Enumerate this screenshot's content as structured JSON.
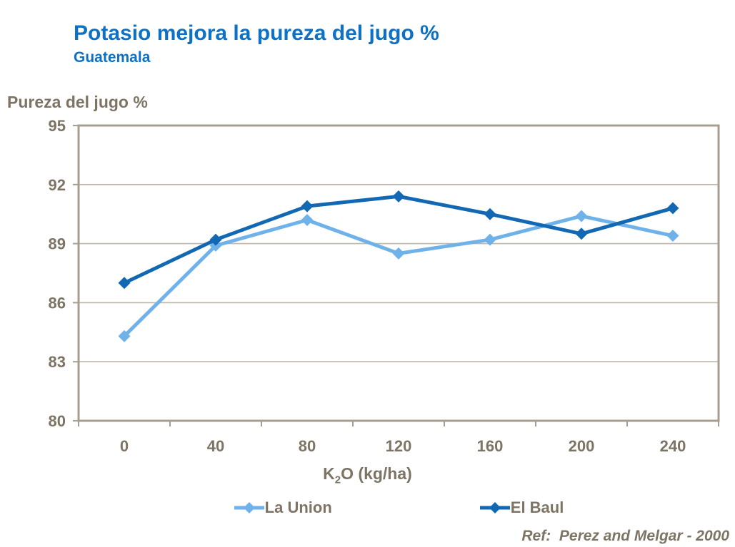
{
  "header": {
    "title": "Potasio mejora la pureza del jugo %",
    "subtitle": "Guatemala"
  },
  "footer": {
    "ref": "Ref:  Perez and Melgar - 2000"
  },
  "chart_data": {
    "type": "line",
    "title": "Potasio mejora la pureza del jugo %",
    "subtitle": "Guatemala",
    "categories": [
      "0",
      "40",
      "80",
      "120",
      "160",
      "200",
      "240"
    ],
    "series": [
      {
        "name": "La Union",
        "color": "#6fb2ea",
        "values": [
          84.3,
          88.9,
          90.2,
          88.5,
          89.2,
          90.4,
          89.4
        ]
      },
      {
        "name": "El Baul",
        "color": "#1268b2",
        "values": [
          87.0,
          89.2,
          90.9,
          91.4,
          90.5,
          89.5,
          90.8
        ]
      }
    ],
    "xlabel": "K2O (kg/ha)",
    "xlabel_parts": {
      "pre": "K",
      "sub": "2",
      "post": "O (kg/ha)"
    },
    "ylabel": "Pureza del jugo %",
    "ylim": [
      80,
      95
    ],
    "yticks": [
      80,
      83,
      86,
      89,
      92,
      95
    ],
    "grid": "horizontal",
    "legend_position": "bottom",
    "marker": "diamond"
  },
  "colors": {
    "title": "#0d72c6",
    "text": "#7d7465",
    "axis": "#a89e90",
    "grid": "#beb6aa",
    "background": "#ffffff"
  }
}
